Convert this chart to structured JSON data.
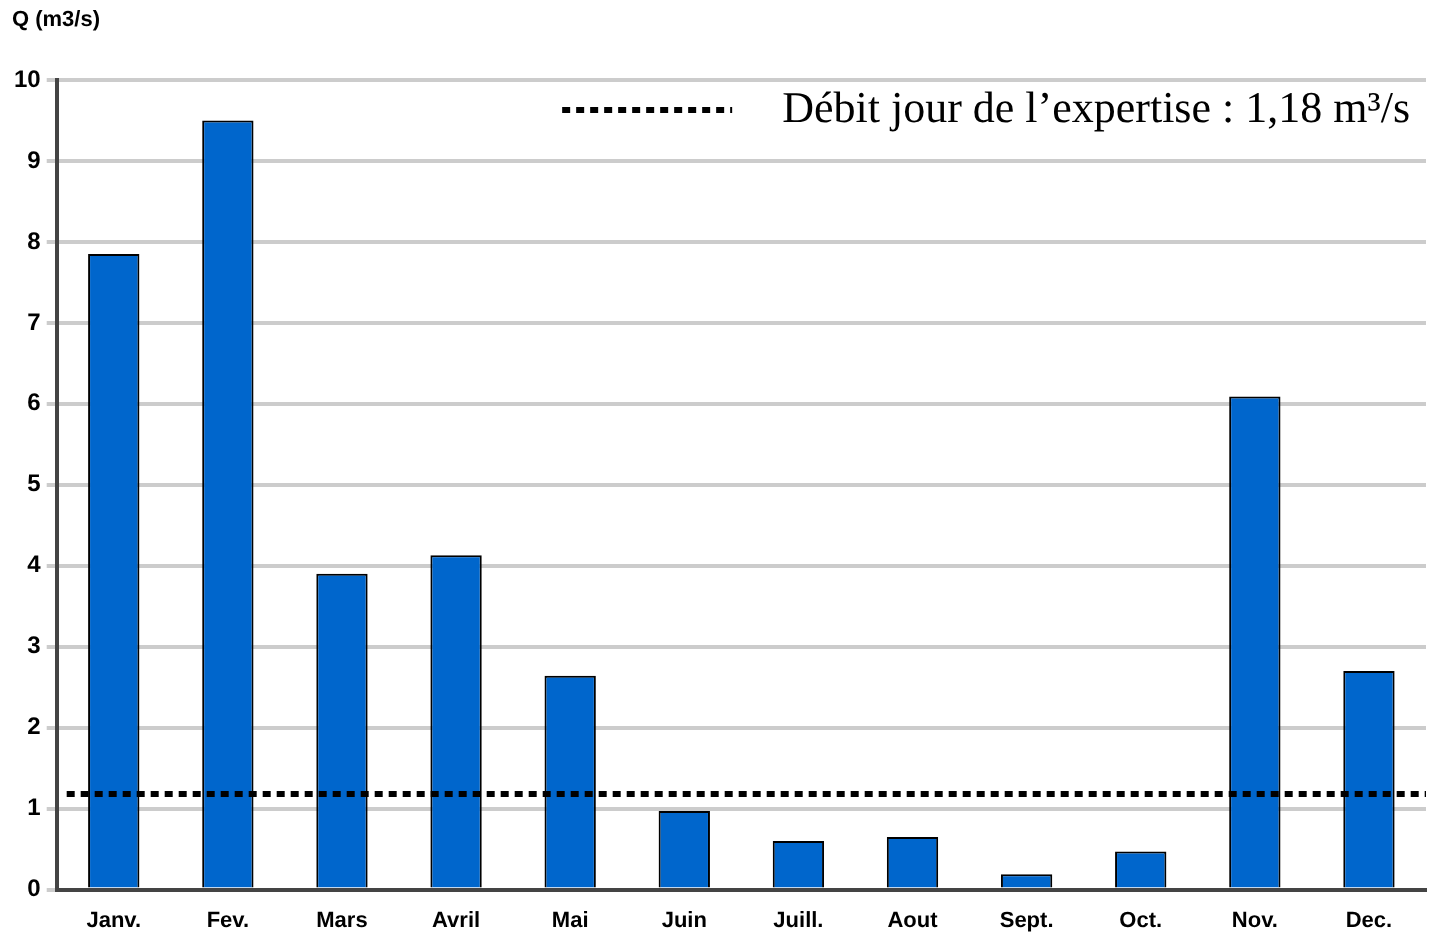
{
  "chart_data": {
    "type": "bar",
    "ylabel": "Q (m3/s)",
    "categories": [
      "Janv.",
      "Fev.",
      "Mars",
      "Avril",
      "Mai",
      "Juin",
      "Juill.",
      "Aout",
      "Sept.",
      "Oct.",
      "Nov.",
      "Dec."
    ],
    "values": [
      7.85,
      9.5,
      3.9,
      4.13,
      2.64,
      0.97,
      0.6,
      0.65,
      0.19,
      0.47,
      6.09,
      2.7
    ],
    "color": "#0066cc",
    "ylim": [
      0,
      10
    ],
    "yticks": [
      0,
      1,
      2,
      3,
      4,
      5,
      6,
      7,
      8,
      9,
      10
    ],
    "grid": "y",
    "ref_lines": [
      {
        "axis": "y",
        "value": 1.18,
        "label": "Débit jour de l’expertise : 1,18 m³/s",
        "color": "#000000",
        "line_style": "dotted"
      }
    ]
  }
}
